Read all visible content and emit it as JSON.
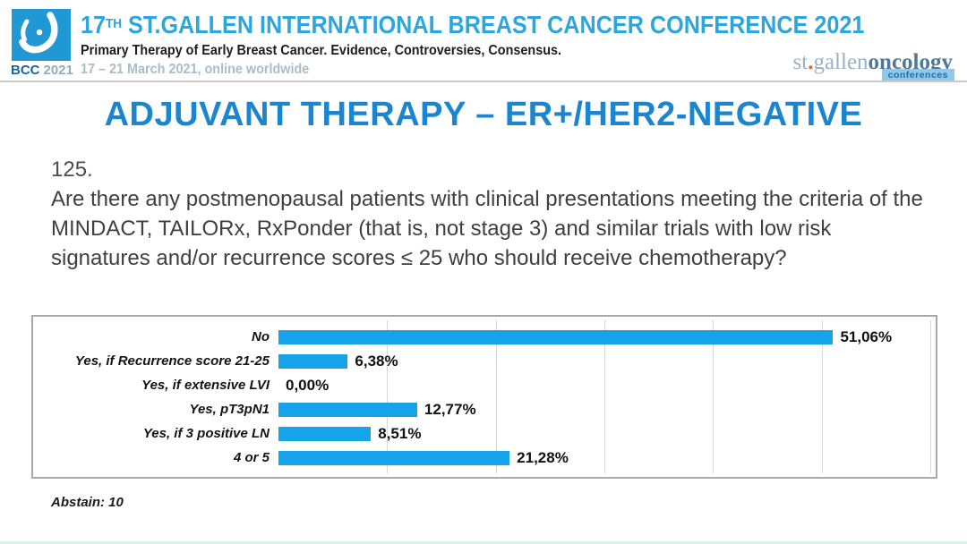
{
  "header": {
    "logo_caption_bcc": "BCC",
    "logo_caption_year": "2021",
    "title_num": "17",
    "title_sup": "TH",
    "title_rest": " ST.GALLEN INTERNATIONAL BREAST CANCER CONFERENCE 2021",
    "subtitle": "Primary Therapy of Early Breast Cancer. Evidence, Controversies, Consensus.",
    "dates": "17 – 21 March 2021, online worldwide",
    "org_logo": {
      "st": "st",
      "dot": ".",
      "gallen": "gallen",
      "oncology": "oncology",
      "conferences": "conferences"
    }
  },
  "slide": {
    "title": "ADJUVANT THERAPY – ER+/HER2-NEGATIVE",
    "question_number": "125.",
    "question_text": "Are there any postmenopausal patients with clinical presentations meeting the criteria of the MINDACT, TAILORx, RxPonder (that is, not stage 3) and similar trials with low risk signatures and/or recurrence scores ≤ 25 who should receive chemotherapy?",
    "abstain_note": "Abstain: 10"
  },
  "chart_data": {
    "type": "bar",
    "orientation": "horizontal",
    "categories": [
      "No",
      "Yes, if Recurrence score 21-25",
      "Yes, if extensive LVI",
      "Yes, pT3pN1",
      "Yes, if 3 positive LN",
      "4 or 5"
    ],
    "values": [
      51.06,
      6.38,
      0.0,
      12.77,
      8.51,
      21.28
    ],
    "value_labels": [
      "51,06%",
      "6,38%",
      "0,00%",
      "12,77%",
      "8,51%",
      "21,28%"
    ],
    "xlim": [
      0,
      60.5
    ],
    "gridline_interval": 10,
    "grid": true,
    "legend": "none",
    "bar_color": "#16a3e9",
    "gridline_color": "#d7d7d7"
  },
  "colors": {
    "header_title_blue": "#2da6dd",
    "slide_title_blue": "#1b86cf",
    "logo_square_blue": "#2098d4",
    "bar_blue": "#16a3e9",
    "conferences_band": "#8cc9ea",
    "orange_dot": "#d96a2a"
  }
}
